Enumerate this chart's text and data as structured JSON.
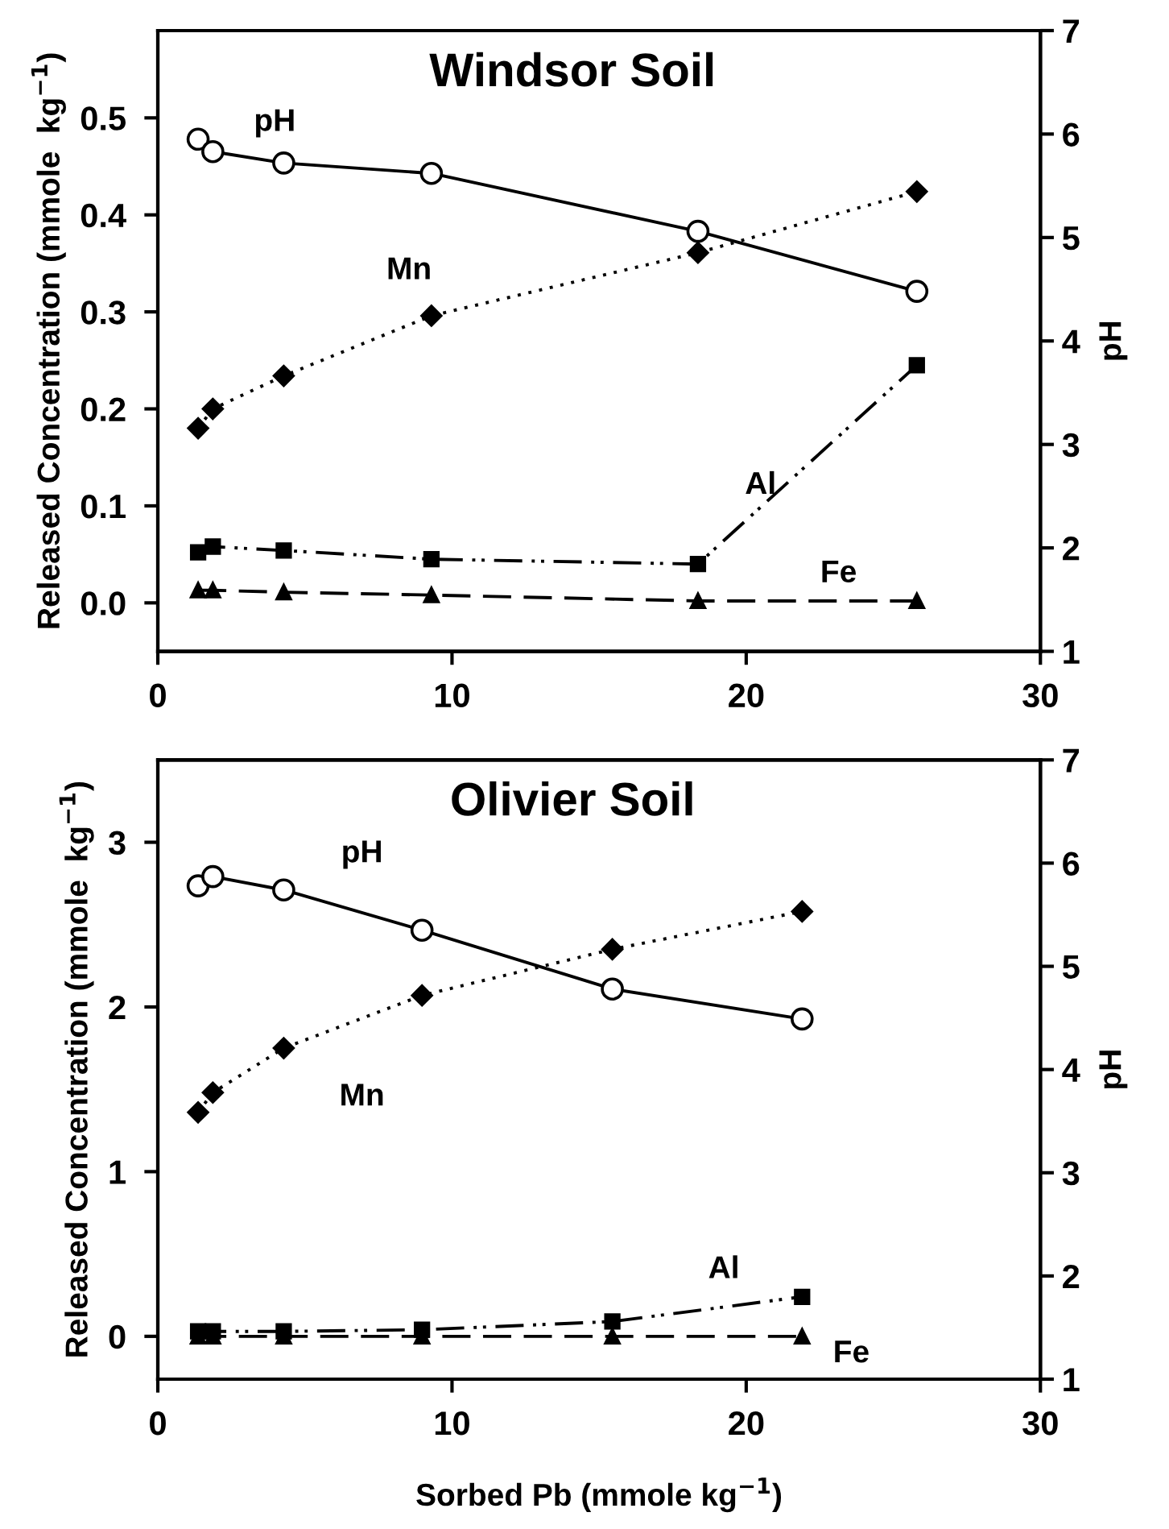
{
  "chart_data": [
    {
      "type": "line",
      "title": "Windsor Soil",
      "ylabel": "Released Concentration (mmole  kg$^{−1}$)",
      "y2label": "pH",
      "xlim": [
        0,
        30
      ],
      "xticks": [
        0,
        10,
        20,
        30
      ],
      "ylim": [
        -0.05,
        0.59
      ],
      "yticks": [
        {
          "value": 0,
          "label": "0.0"
        },
        0.1,
        0.2,
        0.3,
        0.4,
        0.5
      ],
      "y2lim": [
        1,
        7
      ],
      "y2ticks": [
        1,
        2,
        3,
        4,
        5,
        6,
        7
      ],
      "grid": false,
      "legend": false,
      "series": [
        {
          "name": "pH",
          "axis": "y2",
          "color": "#000000",
          "marker": "circle",
          "line_style": "solid",
          "x": [
            1.37,
            1.87,
            4.28,
            9.3,
            18.36,
            25.8
          ],
          "values": [
            5.95,
            5.83,
            5.72,
            5.62,
            5.06,
            4.48
          ]
        },
        {
          "name": "Mn",
          "color": "#000000",
          "marker": "diamond",
          "line_style": "dotted",
          "x": [
            1.37,
            1.87,
            4.28,
            9.3,
            18.36,
            25.8
          ],
          "values": [
            0.18,
            0.2,
            0.234,
            0.296,
            0.361,
            0.424
          ]
        },
        {
          "name": "Al",
          "color": "#000000",
          "marker": "square",
          "line_style": "dashdot",
          "x": [
            1.37,
            1.87,
            4.28,
            9.3,
            18.36,
            25.8
          ],
          "values": [
            0.052,
            0.058,
            0.054,
            0.045,
            0.04,
            0.245
          ]
        },
        {
          "name": "Fe",
          "color": "#000000",
          "marker": "triangle",
          "line_style": "dashed",
          "x": [
            1.37,
            1.87,
            4.28,
            9.3,
            18.36,
            25.8
          ],
          "values": [
            0.013,
            0.013,
            0.011,
            0.008,
            0.002,
            0.002
          ]
        }
      ]
    },
    {
      "type": "line",
      "title": "Olivier Soil",
      "xlabel": "Sorbed Pb (mmole kg$^{−1}$)",
      "ylabel": "Released Concentration (mmole  kg$^{−1}$)",
      "y2label": "pH",
      "xlim": [
        0,
        30
      ],
      "xticks": [
        0,
        10,
        20,
        30
      ],
      "ylim": [
        -0.26,
        3.5
      ],
      "yticks": [
        0,
        1,
        2,
        3
      ],
      "y2lim": [
        1,
        7
      ],
      "y2ticks": [
        1,
        2,
        3,
        4,
        5,
        6,
        7
      ],
      "grid": false,
      "legend": false,
      "series": [
        {
          "name": "pH",
          "axis": "y2",
          "color": "#000000",
          "marker": "circle",
          "line_style": "solid",
          "x": [
            1.37,
            1.87,
            4.28,
            8.98,
            15.45,
            21.9
          ],
          "values": [
            5.78,
            5.87,
            5.74,
            5.35,
            4.78,
            4.49
          ]
        },
        {
          "name": "Mn",
          "color": "#000000",
          "marker": "diamond",
          "line_style": "dotted",
          "x": [
            1.37,
            1.87,
            4.28,
            8.98,
            15.45,
            21.9
          ],
          "values": [
            1.36,
            1.48,
            1.75,
            2.07,
            2.35,
            2.58
          ]
        },
        {
          "name": "Al",
          "color": "#000000",
          "marker": "square",
          "line_style": "dashdot",
          "x": [
            1.37,
            1.87,
            4.28,
            8.98,
            15.45,
            21.9
          ],
          "values": [
            0.03,
            0.03,
            0.03,
            0.04,
            0.09,
            0.24
          ]
        },
        {
          "name": "Fe",
          "color": "#000000",
          "marker": "triangle",
          "line_style": "dashed",
          "x": [
            1.37,
            1.87,
            4.28,
            8.98,
            15.45,
            21.9
          ],
          "values": [
            0.0,
            0.0,
            0.0,
            0.0,
            0.0,
            0.0
          ]
        }
      ]
    }
  ]
}
